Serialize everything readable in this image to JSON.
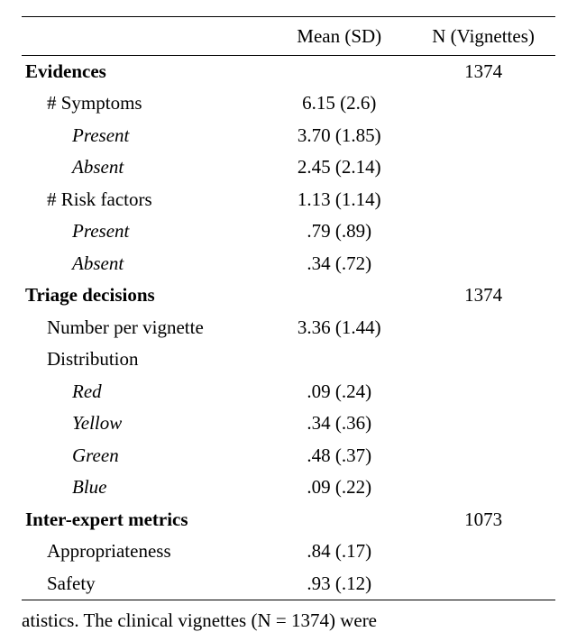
{
  "header": {
    "mean": "Mean (SD)",
    "n": "N (Vignettes)"
  },
  "sections": {
    "evidences": {
      "title": "Evidences",
      "n": "1374",
      "symptoms_label": "# Symptoms",
      "symptoms_mean": "6.15 (2.6)",
      "symptoms_present_label": "Present",
      "symptoms_present_mean": "3.70 (1.85)",
      "symptoms_absent_label": "Absent",
      "symptoms_absent_mean": "2.45 (2.14)",
      "risk_label": "# Risk factors",
      "risk_mean": "1.13 (1.14)",
      "risk_present_label": "Present",
      "risk_present_mean": ".79 (.89)",
      "risk_absent_label": "Absent",
      "risk_absent_mean": ".34 (.72)"
    },
    "triage": {
      "title": "Triage decisions",
      "n": "1374",
      "per_vignette_label": "Number per vignette",
      "per_vignette_mean": "3.36 (1.44)",
      "distribution_label": "Distribution",
      "red_label": "Red",
      "red_mean": ".09 (.24)",
      "yellow_label": "Yellow",
      "yellow_mean": ".34 (.36)",
      "green_label": "Green",
      "green_mean": ".48 (.37)",
      "blue_label": "Blue",
      "blue_mean": ".09 (.22)"
    },
    "inter": {
      "title": "Inter-expert metrics",
      "n": "1073",
      "appr_label": "Appropriateness",
      "appr_mean": ".84 (.17)",
      "safe_label": "Safety",
      "safe_mean": ".93 (.12)"
    }
  },
  "caption_fragment": "atistics.  The clinical vignettes (N = 1374) were"
}
